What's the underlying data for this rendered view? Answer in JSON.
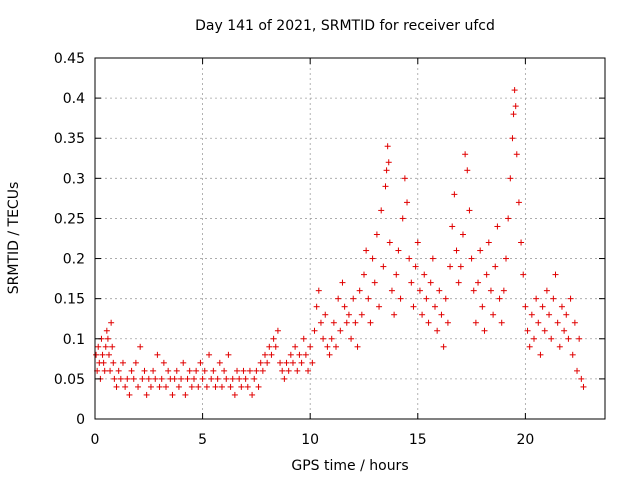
{
  "chart_data": {
    "type": "scatter",
    "title": "Day 141 of 2021, SRMTID for receiver ufcd",
    "xlabel": "GPS time / hours",
    "ylabel": "SRMTID / TECUs",
    "xlim": [
      0,
      23.7
    ],
    "ylim": [
      0,
      0.45
    ],
    "x_ticks": [
      0,
      5,
      10,
      15,
      20
    ],
    "x_tick_labels": [
      "0",
      "5",
      "10",
      "15",
      "20"
    ],
    "y_ticks": [
      0,
      0.05,
      0.1,
      0.15,
      0.2,
      0.25,
      0.3,
      0.35,
      0.4,
      0.45
    ],
    "y_tick_labels": [
      "0",
      "0.05",
      "0.1",
      "0.15",
      "0.2",
      "0.25",
      "0.3",
      "0.35",
      "0.4",
      "0.45"
    ],
    "grid": true,
    "marker": "plus",
    "color": "#e00000",
    "series": [
      {
        "name": "SRMTID",
        "points": [
          [
            0.05,
            0.08
          ],
          [
            0.1,
            0.06
          ],
          [
            0.15,
            0.09
          ],
          [
            0.2,
            0.07
          ],
          [
            0.25,
            0.05
          ],
          [
            0.3,
            0.1
          ],
          [
            0.35,
            0.08
          ],
          [
            0.4,
            0.07
          ],
          [
            0.45,
            0.06
          ],
          [
            0.5,
            0.09
          ],
          [
            0.55,
            0.11
          ],
          [
            0.6,
            0.1
          ],
          [
            0.65,
            0.08
          ],
          [
            0.7,
            0.06
          ],
          [
            0.75,
            0.12
          ],
          [
            0.8,
            0.09
          ],
          [
            0.85,
            0.07
          ],
          [
            0.9,
            0.05
          ],
          [
            1.0,
            0.04
          ],
          [
            1.1,
            0.06
          ],
          [
            1.2,
            0.05
          ],
          [
            1.3,
            0.07
          ],
          [
            1.4,
            0.04
          ],
          [
            1.5,
            0.05
          ],
          [
            1.6,
            0.03
          ],
          [
            1.7,
            0.06
          ],
          [
            1.8,
            0.05
          ],
          [
            1.9,
            0.07
          ],
          [
            2.0,
            0.04
          ],
          [
            2.1,
            0.09
          ],
          [
            2.2,
            0.05
          ],
          [
            2.3,
            0.06
          ],
          [
            2.4,
            0.03
          ],
          [
            2.5,
            0.05
          ],
          [
            2.6,
            0.04
          ],
          [
            2.7,
            0.06
          ],
          [
            2.8,
            0.05
          ],
          [
            2.9,
            0.08
          ],
          [
            3.0,
            0.04
          ],
          [
            3.1,
            0.05
          ],
          [
            3.2,
            0.07
          ],
          [
            3.3,
            0.04
          ],
          [
            3.4,
            0.06
          ],
          [
            3.5,
            0.05
          ],
          [
            3.6,
            0.03
          ],
          [
            3.7,
            0.05
          ],
          [
            3.8,
            0.06
          ],
          [
            3.9,
            0.04
          ],
          [
            4.0,
            0.05
          ],
          [
            4.1,
            0.07
          ],
          [
            4.2,
            0.03
          ],
          [
            4.3,
            0.05
          ],
          [
            4.4,
            0.06
          ],
          [
            4.5,
            0.04
          ],
          [
            4.6,
            0.05
          ],
          [
            4.7,
            0.06
          ],
          [
            4.8,
            0.04
          ],
          [
            4.9,
            0.07
          ],
          [
            5.0,
            0.05
          ],
          [
            5.1,
            0.06
          ],
          [
            5.2,
            0.04
          ],
          [
            5.3,
            0.08
          ],
          [
            5.4,
            0.05
          ],
          [
            5.5,
            0.06
          ],
          [
            5.6,
            0.04
          ],
          [
            5.7,
            0.05
          ],
          [
            5.8,
            0.07
          ],
          [
            5.9,
            0.04
          ],
          [
            6.0,
            0.06
          ],
          [
            6.1,
            0.05
          ],
          [
            6.2,
            0.08
          ],
          [
            6.3,
            0.04
          ],
          [
            6.4,
            0.05
          ],
          [
            6.5,
            0.03
          ],
          [
            6.6,
            0.06
          ],
          [
            6.7,
            0.05
          ],
          [
            6.8,
            0.04
          ],
          [
            6.9,
            0.06
          ],
          [
            7.0,
            0.05
          ],
          [
            7.1,
            0.04
          ],
          [
            7.2,
            0.06
          ],
          [
            7.3,
            0.03
          ],
          [
            7.4,
            0.05
          ],
          [
            7.5,
            0.06
          ],
          [
            7.6,
            0.04
          ],
          [
            7.7,
            0.07
          ],
          [
            7.8,
            0.06
          ],
          [
            7.9,
            0.08
          ],
          [
            8.0,
            0.07
          ],
          [
            8.1,
            0.09
          ],
          [
            8.2,
            0.08
          ],
          [
            8.3,
            0.1
          ],
          [
            8.4,
            0.09
          ],
          [
            8.5,
            0.11
          ],
          [
            8.6,
            0.07
          ],
          [
            8.7,
            0.06
          ],
          [
            8.8,
            0.05
          ],
          [
            8.9,
            0.07
          ],
          [
            9.0,
            0.06
          ],
          [
            9.1,
            0.08
          ],
          [
            9.2,
            0.07
          ],
          [
            9.3,
            0.09
          ],
          [
            9.4,
            0.06
          ],
          [
            9.5,
            0.08
          ],
          [
            9.6,
            0.07
          ],
          [
            9.7,
            0.1
          ],
          [
            9.8,
            0.08
          ],
          [
            9.9,
            0.06
          ],
          [
            10.0,
            0.09
          ],
          [
            10.1,
            0.07
          ],
          [
            10.2,
            0.11
          ],
          [
            10.3,
            0.14
          ],
          [
            10.4,
            0.16
          ],
          [
            10.5,
            0.12
          ],
          [
            10.6,
            0.1
          ],
          [
            10.7,
            0.13
          ],
          [
            10.8,
            0.09
          ],
          [
            10.9,
            0.08
          ],
          [
            11.0,
            0.1
          ],
          [
            11.1,
            0.12
          ],
          [
            11.2,
            0.09
          ],
          [
            11.3,
            0.15
          ],
          [
            11.4,
            0.11
          ],
          [
            11.5,
            0.17
          ],
          [
            11.6,
            0.14
          ],
          [
            11.7,
            0.12
          ],
          [
            11.8,
            0.13
          ],
          [
            11.9,
            0.1
          ],
          [
            12.0,
            0.15
          ],
          [
            12.1,
            0.12
          ],
          [
            12.2,
            0.09
          ],
          [
            12.3,
            0.16
          ],
          [
            12.4,
            0.13
          ],
          [
            12.5,
            0.18
          ],
          [
            12.6,
            0.21
          ],
          [
            12.7,
            0.15
          ],
          [
            12.8,
            0.12
          ],
          [
            12.9,
            0.2
          ],
          [
            13.0,
            0.17
          ],
          [
            13.1,
            0.23
          ],
          [
            13.2,
            0.14
          ],
          [
            13.3,
            0.26
          ],
          [
            13.4,
            0.19
          ],
          [
            13.5,
            0.29
          ],
          [
            13.55,
            0.31
          ],
          [
            13.6,
            0.34
          ],
          [
            13.65,
            0.32
          ],
          [
            13.7,
            0.22
          ],
          [
            13.8,
            0.16
          ],
          [
            13.9,
            0.13
          ],
          [
            14.0,
            0.18
          ],
          [
            14.1,
            0.21
          ],
          [
            14.2,
            0.15
          ],
          [
            14.3,
            0.25
          ],
          [
            14.4,
            0.3
          ],
          [
            14.5,
            0.27
          ],
          [
            14.6,
            0.2
          ],
          [
            14.7,
            0.17
          ],
          [
            14.8,
            0.14
          ],
          [
            14.9,
            0.19
          ],
          [
            15.0,
            0.22
          ],
          [
            15.1,
            0.16
          ],
          [
            15.2,
            0.13
          ],
          [
            15.3,
            0.18
          ],
          [
            15.4,
            0.15
          ],
          [
            15.5,
            0.12
          ],
          [
            15.6,
            0.17
          ],
          [
            15.7,
            0.2
          ],
          [
            15.8,
            0.14
          ],
          [
            15.9,
            0.11
          ],
          [
            16.0,
            0.16
          ],
          [
            16.1,
            0.13
          ],
          [
            16.2,
            0.09
          ],
          [
            16.3,
            0.15
          ],
          [
            16.4,
            0.12
          ],
          [
            16.5,
            0.19
          ],
          [
            16.6,
            0.24
          ],
          [
            16.7,
            0.28
          ],
          [
            16.8,
            0.21
          ],
          [
            16.9,
            0.17
          ],
          [
            17.0,
            0.19
          ],
          [
            17.1,
            0.23
          ],
          [
            17.2,
            0.33
          ],
          [
            17.3,
            0.31
          ],
          [
            17.4,
            0.26
          ],
          [
            17.5,
            0.2
          ],
          [
            17.6,
            0.16
          ],
          [
            17.7,
            0.12
          ],
          [
            17.8,
            0.17
          ],
          [
            17.9,
            0.21
          ],
          [
            18.0,
            0.14
          ],
          [
            18.1,
            0.11
          ],
          [
            18.2,
            0.18
          ],
          [
            18.3,
            0.22
          ],
          [
            18.4,
            0.16
          ],
          [
            18.5,
            0.13
          ],
          [
            18.6,
            0.19
          ],
          [
            18.7,
            0.24
          ],
          [
            18.8,
            0.15
          ],
          [
            18.9,
            0.12
          ],
          [
            19.0,
            0.16
          ],
          [
            19.1,
            0.2
          ],
          [
            19.2,
            0.25
          ],
          [
            19.3,
            0.3
          ],
          [
            19.4,
            0.35
          ],
          [
            19.45,
            0.38
          ],
          [
            19.5,
            0.41
          ],
          [
            19.55,
            0.39
          ],
          [
            19.6,
            0.33
          ],
          [
            19.7,
            0.27
          ],
          [
            19.8,
            0.22
          ],
          [
            19.9,
            0.18
          ],
          [
            20.0,
            0.14
          ],
          [
            20.1,
            0.11
          ],
          [
            20.2,
            0.09
          ],
          [
            20.3,
            0.13
          ],
          [
            20.4,
            0.1
          ],
          [
            20.5,
            0.15
          ],
          [
            20.6,
            0.12
          ],
          [
            20.7,
            0.08
          ],
          [
            20.8,
            0.14
          ],
          [
            20.9,
            0.11
          ],
          [
            21.0,
            0.16
          ],
          [
            21.1,
            0.13
          ],
          [
            21.2,
            0.1
          ],
          [
            21.3,
            0.15
          ],
          [
            21.4,
            0.18
          ],
          [
            21.5,
            0.12
          ],
          [
            21.6,
            0.09
          ],
          [
            21.7,
            0.14
          ],
          [
            21.8,
            0.11
          ],
          [
            21.9,
            0.13
          ],
          [
            22.0,
            0.1
          ],
          [
            22.1,
            0.15
          ],
          [
            22.2,
            0.08
          ],
          [
            22.3,
            0.12
          ],
          [
            22.4,
            0.06
          ],
          [
            22.5,
            0.1
          ],
          [
            22.6,
            0.05
          ],
          [
            22.7,
            0.04
          ]
        ]
      }
    ]
  }
}
